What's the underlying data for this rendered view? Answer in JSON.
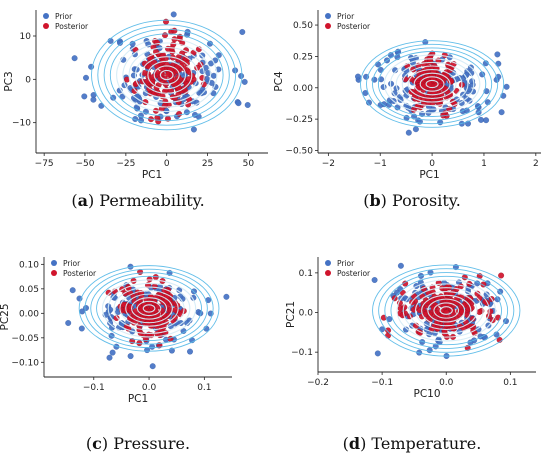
{
  "chart_data": [
    {
      "type": "scatter",
      "panel": "a",
      "caption_letter": "a",
      "caption_text": "Permeability.",
      "xlabel": "PC1",
      "ylabel": "PC3",
      "xlim": [
        -80,
        62
      ],
      "ylim": [
        -17,
        16
      ],
      "xticks": [
        -75,
        -50,
        -25,
        0,
        25,
        50
      ],
      "yticks": [
        -10,
        0,
        10
      ],
      "xtick_labels": [
        "−75",
        "−50",
        "−25",
        "0",
        "25",
        "50"
      ],
      "ytick_labels": [
        "−10",
        "0",
        "10"
      ],
      "legend": {
        "placement": "top-left",
        "entries": [
          "Prior",
          "Posterior"
        ]
      },
      "series": [
        {
          "name": "Prior",
          "color": "#4472c4",
          "center": [
            0,
            0
          ],
          "spread": [
            20,
            5.5
          ],
          "count": 150,
          "seed": 11
        },
        {
          "name": "Posterior",
          "color": "#d0142c",
          "center": [
            0,
            1
          ],
          "spread": [
            9,
            4
          ],
          "count": 160,
          "seed": 23
        }
      ]
    },
    {
      "type": "scatter",
      "panel": "b",
      "caption_letter": "b",
      "caption_text": "Porosity.",
      "xlabel": "PC1",
      "ylabel": "PC4",
      "xlim": [
        -2.2,
        2.1
      ],
      "ylim": [
        -0.52,
        0.62
      ],
      "xticks": [
        -2,
        -1,
        0,
        1,
        2
      ],
      "yticks": [
        -0.5,
        -0.25,
        0.0,
        0.25,
        0.5
      ],
      "xtick_labels": [
        "−2",
        "−1",
        "0",
        "1",
        "2"
      ],
      "ytick_labels": [
        "−0.50",
        "−0.25",
        "0.00",
        "0.25",
        "0.50"
      ],
      "legend": {
        "placement": "top-left",
        "entries": [
          "Prior",
          "Posterior"
        ]
      },
      "series": [
        {
          "name": "Prior",
          "color": "#4472c4",
          "center": [
            0,
            0
          ],
          "spread": [
            0.6,
            0.15
          ],
          "count": 150,
          "seed": 37
        },
        {
          "name": "Posterior",
          "color": "#d0142c",
          "center": [
            0,
            0.03
          ],
          "spread": [
            0.22,
            0.1
          ],
          "count": 170,
          "seed": 41
        }
      ]
    },
    {
      "type": "scatter",
      "panel": "c",
      "caption_letter": "c",
      "caption_text": "Pressure.",
      "xlabel": "PC1",
      "ylabel": "PC25",
      "xlim": [
        -0.19,
        0.15
      ],
      "ylim": [
        -0.13,
        0.115
      ],
      "xticks": [
        -0.1,
        0.0,
        0.1
      ],
      "yticks": [
        -0.1,
        -0.05,
        0.0,
        0.05,
        0.1
      ],
      "xtick_labels": [
        "−0.1",
        "0.0",
        "0.1"
      ],
      "ytick_labels": [
        "−0.10",
        "−0.05",
        "0.00",
        "0.05",
        "0.10"
      ],
      "legend": {
        "placement": "top-left",
        "entries": [
          "Prior",
          "Posterior"
        ]
      },
      "series": [
        {
          "name": "Prior",
          "color": "#4472c4",
          "center": [
            0,
            0
          ],
          "spread": [
            0.055,
            0.038
          ],
          "count": 150,
          "seed": 53
        },
        {
          "name": "Posterior",
          "color": "#d0142c",
          "center": [
            0,
            0.01
          ],
          "spread": [
            0.028,
            0.03
          ],
          "count": 170,
          "seed": 61
        }
      ]
    },
    {
      "type": "scatter",
      "panel": "d",
      "caption_letter": "d",
      "caption_text": "Temperature.",
      "xlabel": "PC10",
      "ylabel": "PC21",
      "xlim": [
        -0.2,
        0.14
      ],
      "ylim": [
        -0.15,
        0.14
      ],
      "xticks": [
        -0.2,
        -0.1,
        0.0,
        0.1
      ],
      "yticks": [
        -0.1,
        0.0,
        0.1
      ],
      "xtick_labels": [
        "−0.2",
        "−0.1",
        "0.0",
        "0.1"
      ],
      "ytick_labels": [
        "−0.1",
        "0.0",
        "0.1"
      ],
      "legend": {
        "placement": "top-left",
        "entries": [
          "Prior",
          "Posterior"
        ]
      },
      "series": [
        {
          "name": "Prior",
          "color": "#4472c4",
          "center": [
            0,
            0
          ],
          "spread": [
            0.05,
            0.05
          ],
          "count": 150,
          "seed": 71
        },
        {
          "name": "Posterior",
          "color": "#d0142c",
          "center": [
            0,
            0.005
          ],
          "spread": [
            0.035,
            0.035
          ],
          "count": 180,
          "seed": 83
        }
      ]
    }
  ]
}
